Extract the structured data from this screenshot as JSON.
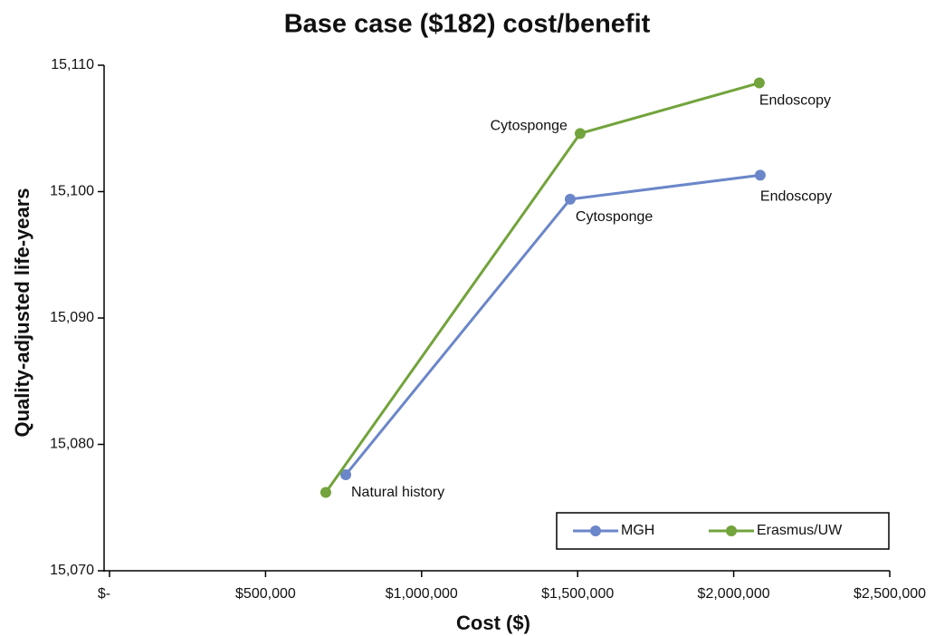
{
  "chart_data": {
    "type": "line",
    "title": "Base case ($182) cost/benefit",
    "x_label": "Cost ($)",
    "y_label": "Quality-adjusted life-years",
    "xlim": [
      0,
      2500000
    ],
    "ylim": [
      15070,
      15110
    ],
    "xticks": [
      {
        "value": 0,
        "label": "$-"
      },
      {
        "value": 500000,
        "label": "$500,000"
      },
      {
        "value": 1000000,
        "label": "$1,000,000"
      },
      {
        "value": 1500000,
        "label": "$1,500,000"
      },
      {
        "value": 2000000,
        "label": "$2,000,000"
      },
      {
        "value": 2500000,
        "label": "$2,500,000"
      }
    ],
    "yticks": [
      {
        "value": 15070,
        "label": "15,070"
      },
      {
        "value": 15080,
        "label": "15,080"
      },
      {
        "value": 15090,
        "label": "15,090"
      },
      {
        "value": 15100,
        "label": "15,100"
      },
      {
        "value": 15110,
        "label": "15,110"
      }
    ],
    "legend": "bottom-right",
    "series": [
      {
        "name": "MGH",
        "color": "#6b86c9",
        "x": [
          757000,
          1476000,
          2085000
        ],
        "values": [
          15077.6,
          15099.4,
          15101.3
        ],
        "labels": [
          "Natural history",
          "Cytosponge",
          "Endoscopy"
        ]
      },
      {
        "name": "Erasmus/UW",
        "color": "#72a33c",
        "x": [
          693000,
          1508000,
          2082000
        ],
        "values": [
          15076.2,
          15104.6,
          15108.6
        ],
        "labels": [
          null,
          "Cytosponge",
          "Endoscopy"
        ]
      }
    ]
  }
}
